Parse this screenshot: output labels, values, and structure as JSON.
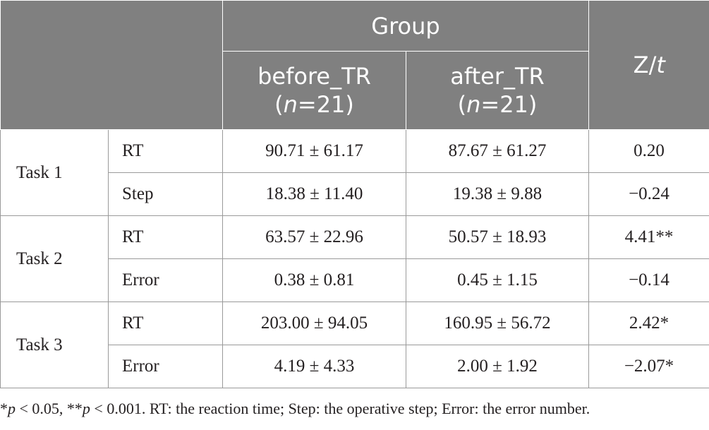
{
  "header": {
    "group_label": "Group",
    "stat_label_prefix": "Z/",
    "stat_label_italic": "t",
    "columns": [
      {
        "name": "before_TR",
        "n_prefix": "(",
        "n_italic": "n",
        "n_suffix": "=21)"
      },
      {
        "name": "after_TR",
        "n_prefix": "(",
        "n_italic": "n",
        "n_suffix": "=21)"
      }
    ]
  },
  "tasks": [
    {
      "label": "Task 1",
      "rows": [
        {
          "measure": "RT",
          "before": "90.71 ± 61.17",
          "after": "87.67 ± 61.27",
          "stat": "0.20"
        },
        {
          "measure": "Step",
          "before": "18.38 ± 11.40",
          "after": "19.38 ± 9.88",
          "stat": "−0.24"
        }
      ]
    },
    {
      "label": "Task 2",
      "rows": [
        {
          "measure": "RT",
          "before": "63.57 ± 22.96",
          "after": "50.57 ± 18.93",
          "stat": "4.41**"
        },
        {
          "measure": "Error",
          "before": "0.38 ± 0.81",
          "after": "0.45 ± 1.15",
          "stat": "−0.14"
        }
      ]
    },
    {
      "label": "Task 3",
      "rows": [
        {
          "measure": "RT",
          "before": "203.00 ± 94.05",
          "after": "160.95 ± 56.72",
          "stat": "2.42*"
        },
        {
          "measure": "Error",
          "before": "4.19 ± 4.33",
          "after": "2.00 ± 1.92",
          "stat": "−2.07*"
        }
      ]
    }
  ],
  "footnote": {
    "star1": "*",
    "p1": "p",
    "text1": " < 0.05, **",
    "p2": "p",
    "text2": " < 0.001. RT: the reaction time; Step: the operative step; Error: the error number."
  }
}
